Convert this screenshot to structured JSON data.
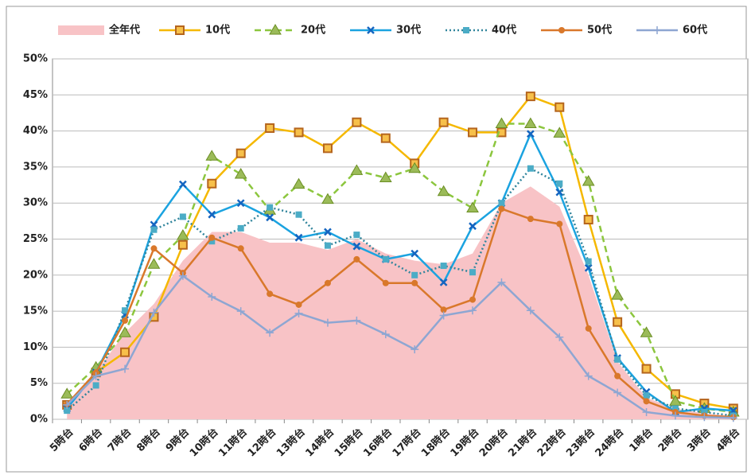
{
  "chart_data": {
    "type": "line",
    "categories": [
      "5時台",
      "6時台",
      "7時台",
      "8時台",
      "9時台",
      "10時台",
      "11時台",
      "12時台",
      "13時台",
      "14時台",
      "15時台",
      "16時台",
      "17時台",
      "18時台",
      "19時台",
      "20時台",
      "21時台",
      "22時台",
      "23時台",
      "24時台",
      "1時台",
      "2時台",
      "3時台",
      "4時台"
    ],
    "series": [
      {
        "name": "全年代",
        "color": "#f8c3c6",
        "style": "area",
        "values": [
          2,
          6.5,
          12,
          16,
          22,
          26,
          26,
          24.5,
          24.5,
          23.5,
          25,
          23,
          22,
          21.5,
          23,
          30,
          32.3,
          29.5,
          20,
          8,
          3,
          1.5,
          0.8,
          0.5
        ]
      },
      {
        "name": "10代",
        "color": "#f5b800",
        "marker": "square",
        "dash": "solid",
        "values": [
          2,
          6.5,
          9.3,
          14.2,
          24.2,
          32.7,
          36.9,
          40.4,
          39.8,
          37.6,
          41.2,
          39,
          35.5,
          41.2,
          39.8,
          39.8,
          44.8,
          43.3,
          27.7,
          13.5,
          7,
          3.5,
          2.2,
          1.5
        ]
      },
      {
        "name": "20代",
        "color": "#8cc63e",
        "marker": "triangle",
        "dash": "dashed",
        "values": [
          3.5,
          7.2,
          12,
          21.5,
          25.5,
          36.5,
          34,
          29,
          32.6,
          30.5,
          34.5,
          33.5,
          34.8,
          31.6,
          29.3,
          41,
          41,
          39.7,
          33,
          17.2,
          12,
          2.5,
          1.5,
          1
        ]
      },
      {
        "name": "30代",
        "color": "#1ba3e0",
        "marker": "x",
        "dash": "solid",
        "values": [
          1.5,
          6.5,
          14.5,
          27,
          32.6,
          28.4,
          30,
          28,
          25.2,
          26,
          24,
          22.2,
          23,
          19,
          26.8,
          30,
          39.6,
          31.5,
          21,
          8.5,
          3.8,
          1,
          1.5,
          1.2
        ]
      },
      {
        "name": "40代",
        "color": "#31859c",
        "marker": "smallsquare",
        "dash": "dotted",
        "values": [
          1.2,
          4.7,
          15.1,
          26.3,
          28.1,
          24.7,
          26.5,
          29.4,
          28.4,
          24.1,
          25.6,
          22.2,
          20,
          21.3,
          20.4,
          30,
          34.8,
          32.7,
          21.9,
          8.3,
          3.3,
          1.5,
          1,
          0.5
        ]
      },
      {
        "name": "50代",
        "color": "#d9782b",
        "marker": "circle",
        "dash": "solid",
        "values": [
          2.1,
          6.5,
          13.7,
          23.7,
          20.3,
          25.2,
          23.7,
          17.4,
          15.9,
          18.9,
          22.2,
          18.9,
          18.9,
          15.2,
          16.6,
          29.2,
          27.8,
          27.1,
          12.6,
          6,
          2.5,
          1,
          0.5,
          0.3
        ]
      },
      {
        "name": "60代",
        "color": "#8ea6d2",
        "marker": "plus",
        "dash": "solid",
        "values": [
          2,
          6,
          7,
          14.8,
          19.9,
          17,
          15,
          12,
          14.7,
          13.4,
          13.7,
          11.8,
          9.7,
          14.4,
          15.1,
          19,
          15.1,
          11.4,
          6,
          3.7,
          1,
          0.5,
          0.3,
          0.2
        ]
      }
    ],
    "ylim": [
      0,
      50
    ],
    "yticks": [
      {
        "value": 0,
        "label": "0%"
      },
      {
        "value": 5,
        "label": "5%"
      },
      {
        "value": 10,
        "label": "10%"
      },
      {
        "value": 15,
        "label": "15%"
      },
      {
        "value": 20,
        "label": "20%"
      },
      {
        "value": 25,
        "label": "25%"
      },
      {
        "value": 30,
        "label": "30%"
      },
      {
        "value": 35,
        "label": "35%"
      },
      {
        "value": 40,
        "label": "40%"
      },
      {
        "value": 45,
        "label": "45%"
      },
      {
        "value": 50,
        "label": "50%"
      }
    ],
    "grid": true,
    "legend": "top"
  }
}
